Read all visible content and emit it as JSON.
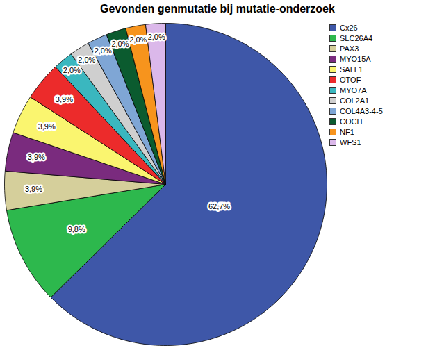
{
  "chart_data": {
    "type": "pie",
    "title": "Gevonden genmutatie bij mutatie-onderzoek",
    "categories": [
      "Cx26",
      "SLC26A4",
      "PAX3",
      "MYO15A",
      "SALL1",
      "OTOF",
      "MYO7A",
      "COL2A1",
      "COL4A3-4-5",
      "COCH",
      "NF1",
      "WFS1"
    ],
    "values": [
      62.7,
      9.8,
      3.9,
      3.9,
      3.9,
      3.9,
      2.0,
      2.0,
      2.0,
      2.0,
      2.0,
      2.0
    ],
    "value_labels": [
      "62,7%",
      "9,8%",
      "3,9%",
      "3,9%",
      "3,9%",
      "3,9%",
      "2,0%",
      "2,0%",
      "2,0%",
      "2,0%",
      "2,0%",
      "2,0%"
    ],
    "colors": [
      "#3e57a8",
      "#2db84d",
      "#d5cf9b",
      "#7a2b7e",
      "#faf56f",
      "#ec2b2b",
      "#3ab7bf",
      "#cfcfcf",
      "#7fa6d5",
      "#0b5b2f",
      "#f7941d",
      "#dbb8ea"
    ],
    "data_labels": true,
    "legend": "upper right"
  }
}
